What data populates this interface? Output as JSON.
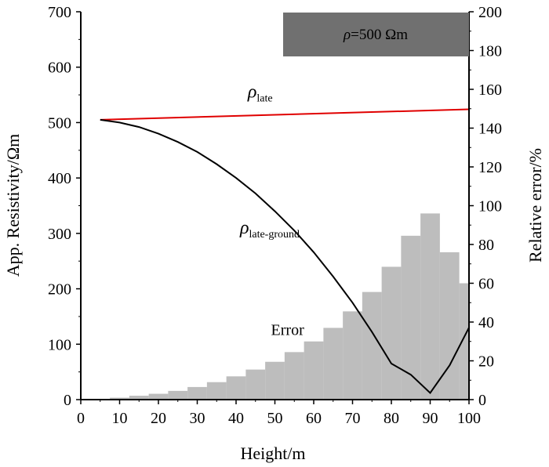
{
  "chart_data": {
    "type": "bar+line",
    "title": "",
    "xlabel": "Height/m",
    "ylabel_left": "App. Resistivity/Ωm",
    "ylabel_right": "Relative error/%",
    "xlim": [
      0,
      100
    ],
    "ylim_left": [
      0,
      700
    ],
    "ylim_right": [
      0,
      200
    ],
    "x_ticks": [
      0,
      10,
      20,
      30,
      40,
      50,
      60,
      70,
      80,
      90,
      100
    ],
    "y_left_ticks": [
      0,
      100,
      200,
      300,
      400,
      500,
      600,
      700
    ],
    "y_right_ticks": [
      0,
      20,
      40,
      60,
      80,
      100,
      120,
      140,
      160,
      180,
      200
    ],
    "legend_box": {
      "text": "ρ=500 Ωm",
      "placement": "top-right",
      "fill": "#707070"
    },
    "colors": {
      "red_curve": "#e00000",
      "black_curve": "#000000",
      "bars": "#bdbdbd"
    },
    "series": [
      {
        "label_main": "ρ",
        "label_sub": "late",
        "axis": "left",
        "kind": "line",
        "x": [
          5,
          100
        ],
        "y": [
          505,
          524
        ]
      },
      {
        "label_main": "ρ",
        "label_sub": "late-ground",
        "axis": "left",
        "kind": "line",
        "x": [
          5,
          10,
          15,
          20,
          25,
          30,
          35,
          40,
          45,
          50,
          55,
          60,
          65,
          70,
          75,
          80,
          85,
          90,
          95,
          100
        ],
        "y": [
          505,
          500,
          492,
          480,
          465,
          447,
          425,
          400,
          372,
          340,
          305,
          266,
          222,
          175,
          122,
          65,
          45,
          12,
          62,
          130
        ]
      },
      {
        "label_main": "Error",
        "axis": "right",
        "kind": "bar",
        "bar_width": 5,
        "x": [
          10,
          15,
          20,
          25,
          30,
          35,
          40,
          45,
          50,
          55,
          60,
          65,
          70,
          75,
          80,
          85,
          90,
          95,
          100
        ],
        "y": [
          1,
          2,
          3,
          4.5,
          6.5,
          9,
          12,
          15.5,
          19.5,
          24.5,
          30,
          37,
          45.5,
          55.5,
          68.5,
          84.5,
          96,
          76,
          60
        ]
      }
    ],
    "annotations": [
      {
        "main": "ρ",
        "sub": "late",
        "x": 43,
        "y": 545
      },
      {
        "main": "ρ",
        "sub": "late-ground",
        "x": 41,
        "y": 300
      },
      {
        "main": "Error",
        "x": 49,
        "y": 117
      }
    ]
  }
}
